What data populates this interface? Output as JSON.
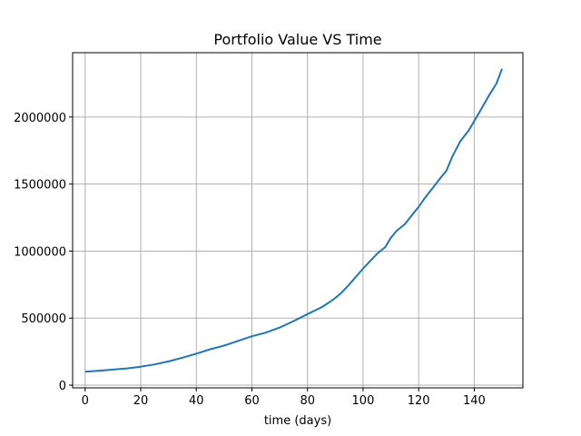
{
  "chart_data": {
    "type": "line",
    "title": "Portfolio Value VS Time",
    "xlabel": "time (days)",
    "ylabel": "",
    "xlim": [
      -4.5,
      157.5
    ],
    "ylim": [
      -20000,
      2480000
    ],
    "xticks": [
      0,
      20,
      40,
      60,
      80,
      100,
      120,
      140
    ],
    "yticks": [
      0,
      500000,
      1000000,
      1500000,
      2000000
    ],
    "grid": true,
    "colors": {
      "line": "#1f77b4",
      "grid": "#b0b0b0",
      "axes": "#000000"
    },
    "series": [
      {
        "x": [
          0,
          5,
          10,
          15,
          20,
          25,
          30,
          35,
          40,
          45,
          50,
          55,
          60,
          65,
          70,
          75,
          80,
          85,
          88,
          90,
          92,
          95,
          100,
          105,
          108,
          110,
          112,
          115,
          118,
          120,
          122,
          125,
          128,
          130,
          132,
          135,
          138,
          140,
          142,
          145,
          148,
          150
        ],
        "values": [
          100000,
          108000,
          116000,
          125000,
          138000,
          155000,
          177000,
          205000,
          235000,
          268000,
          295000,
          330000,
          365000,
          392000,
          430000,
          478000,
          530000,
          580000,
          620000,
          650000,
          685000,
          750000,
          870000,
          980000,
          1030000,
          1100000,
          1150000,
          1200000,
          1280000,
          1330000,
          1390000,
          1470000,
          1550000,
          1600000,
          1700000,
          1820000,
          1900000,
          1970000,
          2040000,
          2150000,
          2250000,
          2360000
        ]
      }
    ]
  }
}
